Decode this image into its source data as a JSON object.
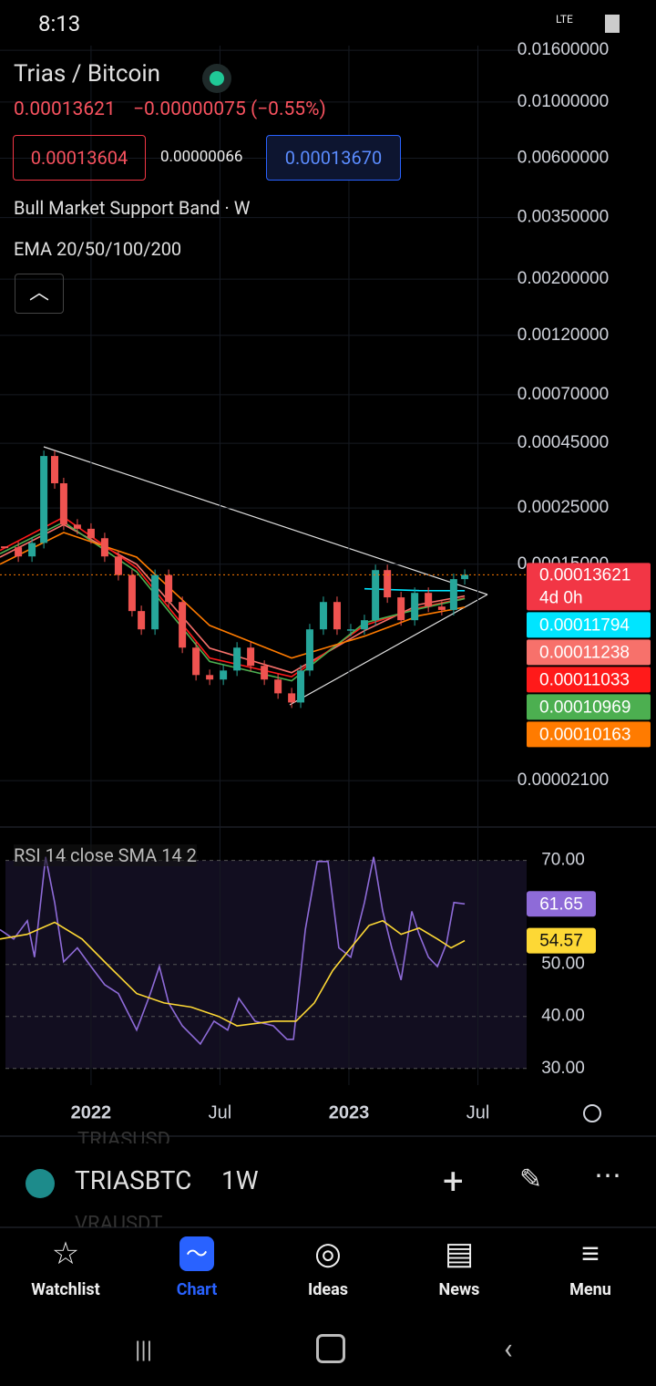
{
  "status_bar": {
    "time": "8:13",
    "network": "LTE"
  },
  "header": {
    "title": "Trias / Bitcoin",
    "last": "0.00013621",
    "change": "−0.00000075 (−0.55%)",
    "bid": "0.00013604",
    "spread": "0.00000066",
    "ask": "0.00013670",
    "indicators": [
      "Bull Market Support Band · W",
      "EMA 20/50/100/200"
    ]
  },
  "chart_data": [
    {
      "type": "candlestick",
      "up_color": "#26a69a",
      "down_color": "#ef5350",
      "last_color": "#f23645",
      "countdown": "4d 0h",
      "log_scale": true,
      "grid": true,
      "x": [
        2021.665,
        2021.718,
        2021.771,
        2021.817,
        2021.859,
        2021.894,
        2021.947,
        2022.0,
        2022.053,
        2022.106,
        2022.159,
        2022.195,
        2022.248,
        2022.301,
        2022.354,
        2022.407,
        2022.46,
        2022.513,
        2022.566,
        2022.619,
        2022.672,
        2022.725,
        2022.778,
        2022.813,
        2022.848,
        2022.901,
        2022.954,
        2023.007,
        2023.06,
        2023.103,
        2023.149,
        2023.202,
        2023.255,
        2023.308,
        2023.36,
        2023.406,
        2023.449
      ],
      "close": [
        0.000175,
        0.000161,
        0.000182,
        0.000401,
        0.000313,
        0.000215,
        0.000207,
        0.00019,
        0.000161,
        0.000136,
        9.8e-05,
        8.3e-05,
        0.000136,
        0.0001064,
        7.03e-05,
        5.48e-05,
        5.26e-05,
        5.71e-05,
        7.03e-05,
        5.96e-05,
        5.26e-05,
        4.64e-05,
        4.27e-05,
        5.71e-05,
        8.3e-05,
        0.0001064,
        8.3e-05,
        8.3e-05,
        9.02e-05,
        0.0001422,
        0.000111,
        9.02e-05,
        0.0001156,
        0.0001021,
        9.9e-05,
        0.000131,
        0.00013621
      ],
      "series": [
        {
          "color": "#00e5ff",
          "x": [
            2021.647,
            2021.894,
            2022.177,
            2022.46,
            2022.778,
            2023.06,
            2023.272,
            2023.449
          ],
          "values": [
            null,
            null,
            null,
            null,
            null,
            0.00012,
            0.000118,
            0.00011794
          ]
        },
        {
          "color": "#f7716b",
          "x": [
            2021.647,
            2021.894,
            2022.177,
            2022.46,
            2022.778,
            2023.06,
            2023.272,
            2023.449
          ],
          "values": [
            0.00016,
            0.000215,
            0.00015,
            7e-05,
            5.6e-05,
            8.2e-05,
            0.000104,
            0.00011238
          ]
        },
        {
          "color": "#ff1a1a",
          "x": [
            2021.647,
            2021.894,
            2022.177,
            2022.46,
            2022.778,
            2023.06,
            2023.272,
            2023.449
          ],
          "values": [
            0.00017,
            0.00023,
            0.000145,
            6.4e-05,
            5.4e-05,
            8.6e-05,
            0.000101,
            0.00011033
          ]
        },
        {
          "color": "#4caf50",
          "x": [
            2021.647,
            2021.894,
            2022.177,
            2022.46,
            2022.778,
            2023.06,
            2023.272,
            2023.449
          ],
          "values": [
            0.000165,
            0.00022,
            0.00014,
            6.2e-05,
            5.2e-05,
            8.8e-05,
            0.0001,
            0.00010969
          ]
        },
        {
          "color": "#ff7b00",
          "x": [
            2021.647,
            2021.894,
            2022.177,
            2022.46,
            2022.778,
            2023.06,
            2023.272,
            2023.449
          ],
          "values": [
            0.00015,
            0.0002,
            0.00016,
            8.6e-05,
            6.4e-05,
            7.8e-05,
            9.4e-05,
            0.00010163
          ]
        }
      ],
      "xlim": [
        2021.647,
        2023.689
      ],
      "xticks": [
        2022,
        {
          "value": 2022.5,
          "label": "Jul"
        },
        2023,
        {
          "value": 2023.5,
          "label": "Jul"
        }
      ],
      "ylim": [
        1.4e-05,
        0.0167
      ],
      "yticks": [
        {
          "value": 0.016,
          "label": "0.01600000"
        },
        {
          "value": 0.01,
          "label": "0.01000000"
        },
        {
          "value": 0.006,
          "label": "0.00600000"
        },
        {
          "value": 0.0035,
          "label": "0.00350000"
        },
        {
          "value": 0.002,
          "label": "0.00200000"
        },
        {
          "value": 0.0012,
          "label": "0.00120000"
        },
        {
          "value": 0.0007,
          "label": "0.00070000"
        },
        {
          "value": 0.00045,
          "label": "0.00045000"
        },
        {
          "value": 0.00025,
          "label": "0.00025000"
        },
        {
          "value": 0.00015,
          "label": "0.00015000"
        },
        {
          "value": 2.1e-05,
          "label": "0.00002100"
        }
      ]
    },
    {
      "type": "line",
      "title": "RSI 14 close SMA 14 2",
      "series": [
        {
          "color": "#8e6bd8",
          "x": [
            2021.647,
            2021.7,
            2021.753,
            2021.781,
            2021.824,
            2021.859,
            2021.894,
            2021.947,
            2022.0,
            2022.053,
            2022.106,
            2022.177,
            2022.23,
            2022.265,
            2022.301,
            2022.354,
            2022.424,
            2022.477,
            2022.53,
            2022.573,
            2022.636,
            2022.707,
            2022.76,
            2022.785,
            2022.831,
            2022.877,
            2022.919,
            2022.961,
            2023.007,
            2023.06,
            2023.096,
            2023.131,
            2023.166,
            2023.202,
            2023.244,
            2023.272,
            2023.308,
            2023.343,
            2023.378,
            2023.407,
            2023.449
          ],
          "values": [
            56.7,
            54.9,
            58.4,
            51.4,
            70.7,
            61.9,
            50.5,
            53.2,
            49.6,
            46.1,
            44.4,
            37.4,
            44.4,
            49.6,
            42.6,
            38.2,
            34.7,
            39.1,
            37.4,
            43.5,
            39.1,
            38.2,
            35.6,
            35.6,
            56.7,
            69.8,
            69.8,
            53.2,
            51.4,
            61.9,
            70.7,
            60.2,
            53.2,
            47.0,
            60.2,
            55.8,
            51.4,
            49.6,
            54.0,
            61.9,
            61.65
          ]
        },
        {
          "color": "#fdd835",
          "x": [
            2021.647,
            2021.753,
            2021.859,
            2021.965,
            2022.071,
            2022.177,
            2022.283,
            2022.389,
            2022.495,
            2022.566,
            2022.707,
            2022.795,
            2022.866,
            2022.937,
            2023.007,
            2023.078,
            2023.131,
            2023.202,
            2023.272,
            2023.343,
            2023.396,
            2023.449
          ],
          "values": [
            54.9,
            55.8,
            58.1,
            54.9,
            49.6,
            44.4,
            42.6,
            41.8,
            40.0,
            38.2,
            39.1,
            39.1,
            42.6,
            48.8,
            53.2,
            57.5,
            58.4,
            55.8,
            57.0,
            54.9,
            53.2,
            54.57
          ]
        }
      ],
      "ylim": [
        26.8,
        75.9
      ],
      "yticks": [
        {
          "value": 70,
          "label": "70.00"
        },
        {
          "value": 50,
          "label": "50.00"
        },
        {
          "value": 40,
          "label": "40.00"
        },
        {
          "value": 30,
          "label": "30.00"
        }
      ]
    }
  ],
  "toolbar": {
    "symbol": "TRIASBTC",
    "interval": "1W",
    "recent": [
      "TRIASUSD",
      "VRAUSDT"
    ]
  },
  "nav": [
    "Watchlist",
    "Chart",
    "Ideas",
    "News",
    "Menu"
  ]
}
